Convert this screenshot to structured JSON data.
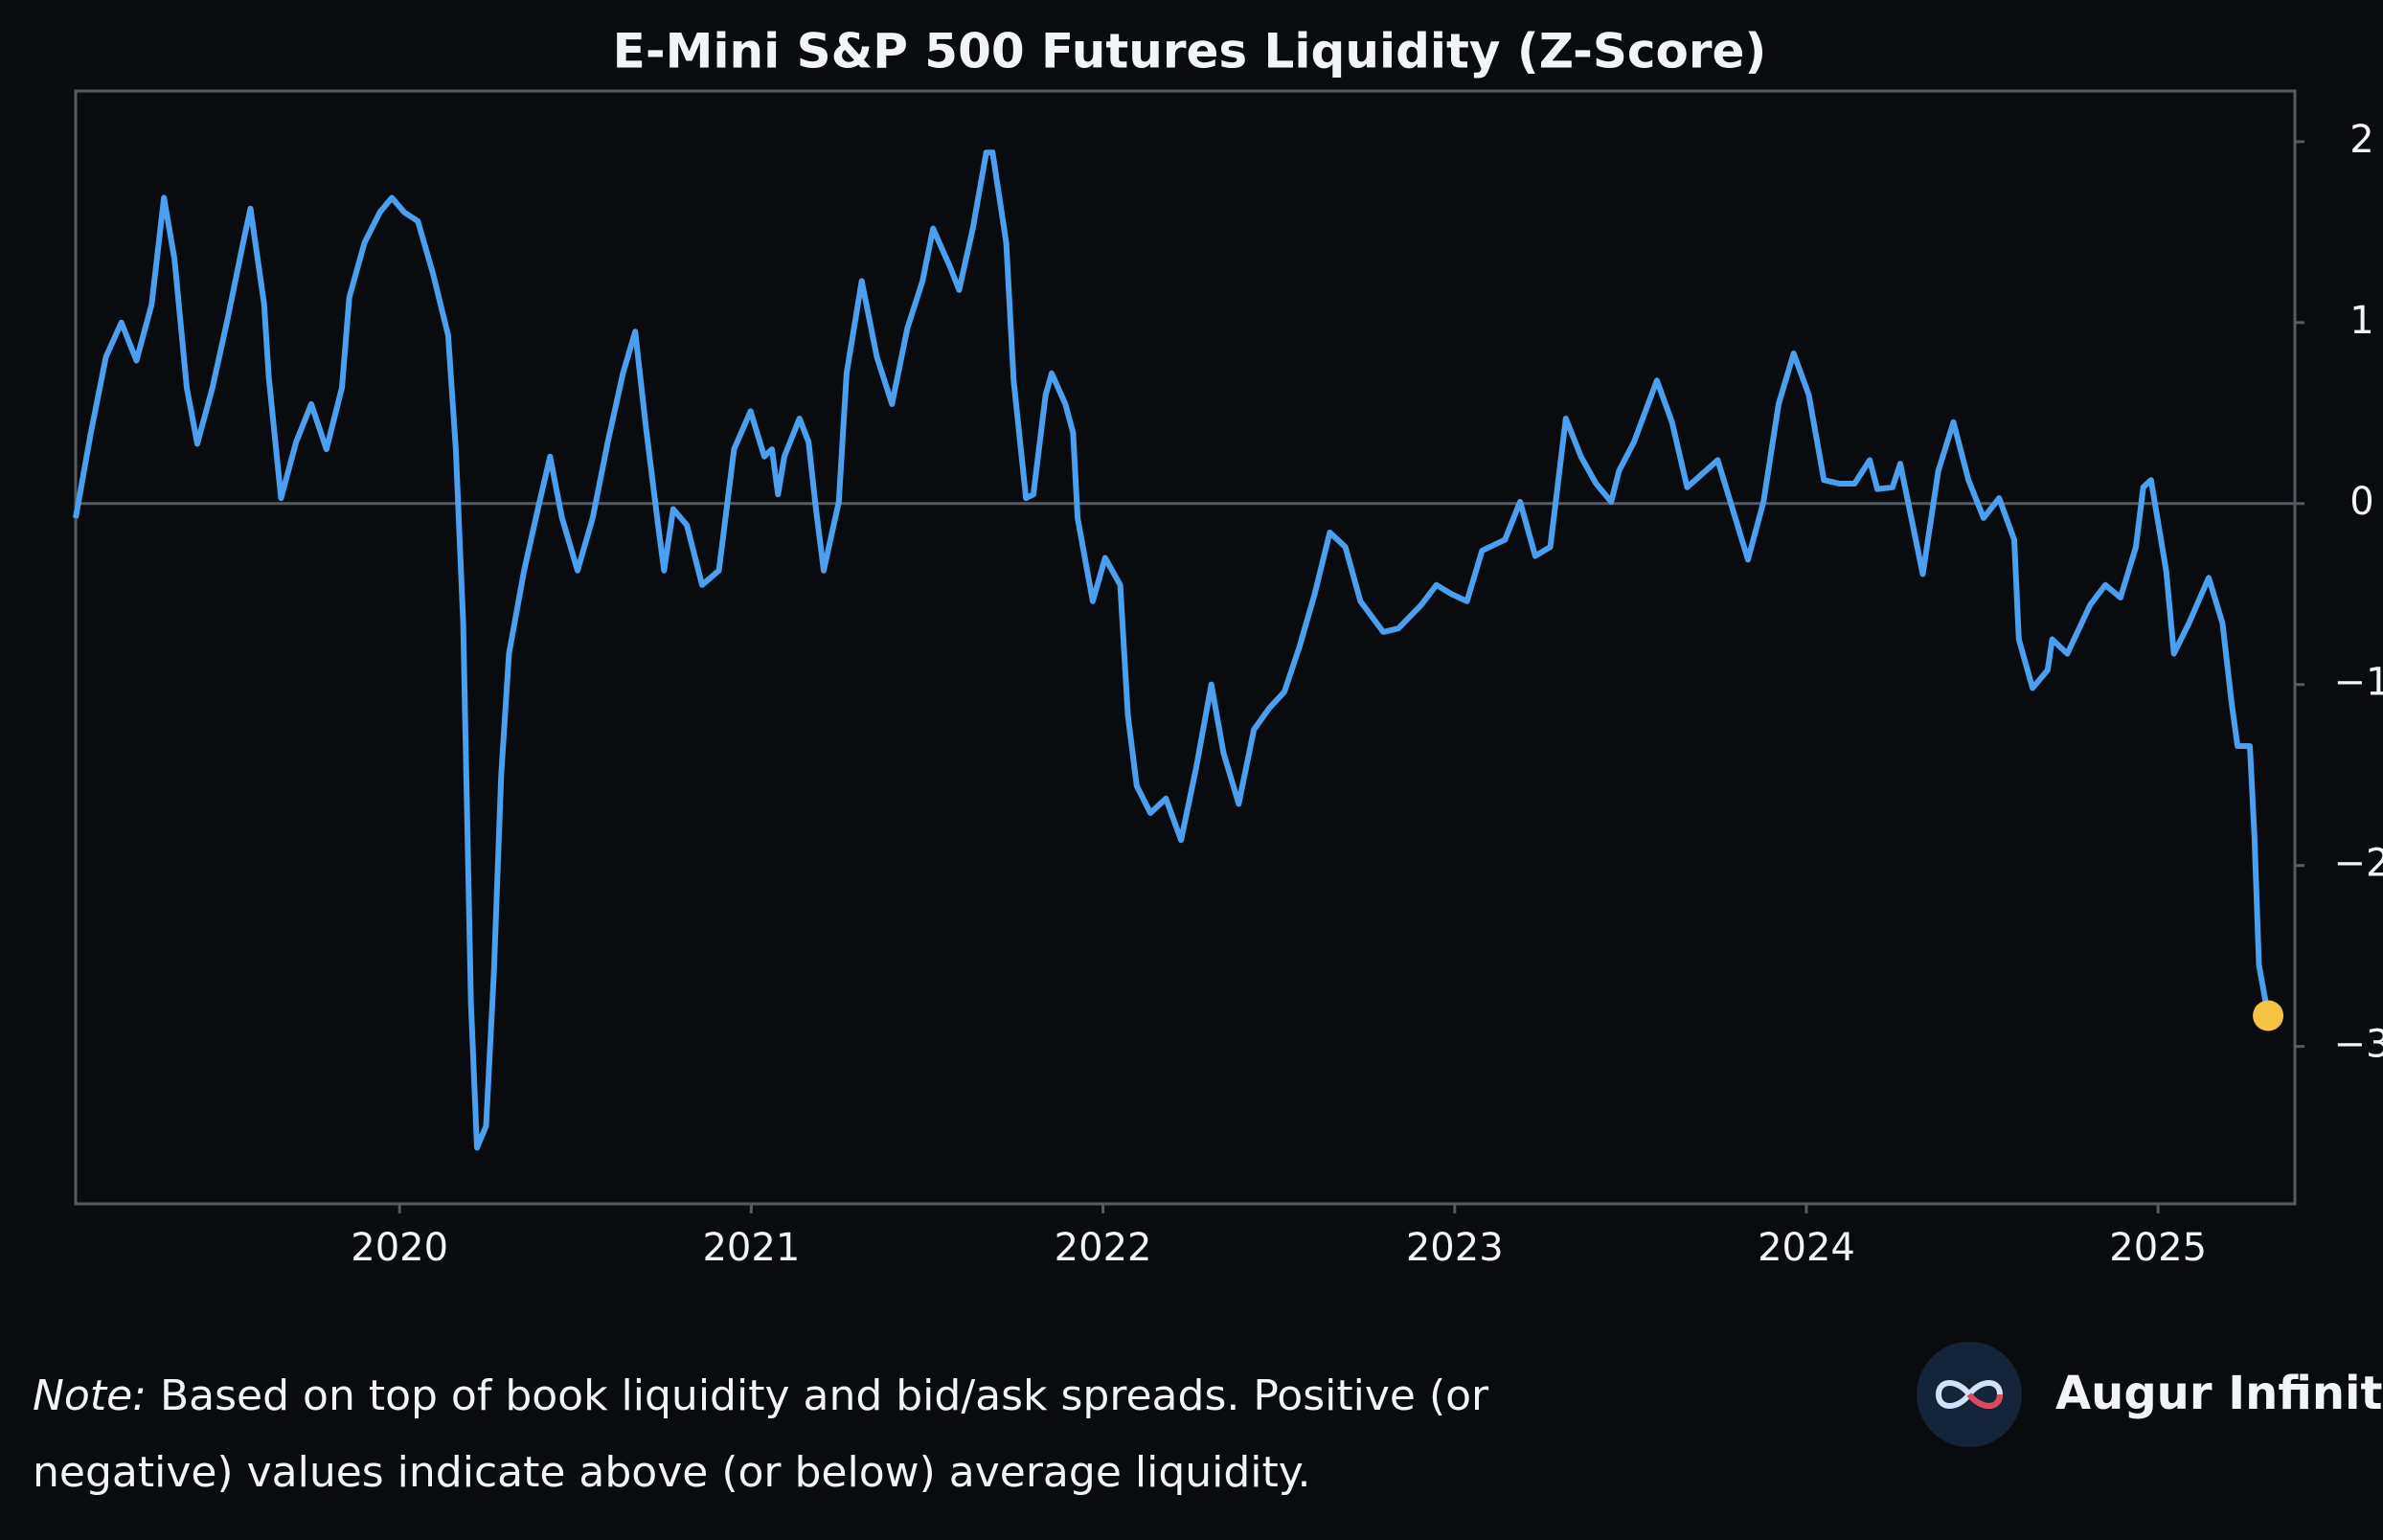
{
  "chart_data": {
    "type": "line",
    "title": "E-Mini S&P 500 Futures Liquidity (Z-Score)",
    "color": "#4a9ff0",
    "last_point_color": "#f5c242",
    "reference_line": 0,
    "xlim": [
      2019.079,
      2025.389
    ],
    "xticks": [
      2020,
      2021,
      2022,
      2023,
      2024,
      2025
    ],
    "ylim": [
      -3.87,
      2.28
    ],
    "yticks": [
      {
        "value": -3,
        "label": "−3"
      },
      {
        "value": -2,
        "label": "−2"
      },
      {
        "value": -1,
        "label": "−1"
      },
      0,
      1,
      2
    ],
    "x": [
      2019.079,
      2019.122,
      2019.165,
      2019.209,
      2019.252,
      2019.295,
      2019.33,
      2019.36,
      2019.395,
      2019.425,
      2019.468,
      2019.511,
      2019.555,
      2019.576,
      2019.615,
      2019.628,
      2019.663,
      2019.706,
      2019.749,
      2019.792,
      2019.836,
      2019.857,
      2019.9,
      2019.944,
      2019.978,
      2020.013,
      2020.052,
      2020.095,
      2020.138,
      2020.16,
      2020.181,
      2020.203,
      2020.22,
      2020.246,
      2020.268,
      2020.289,
      2020.311,
      2020.354,
      2020.398,
      2020.428,
      2020.462,
      2020.506,
      2020.549,
      2020.592,
      2020.635,
      2020.67,
      2020.7,
      2020.735,
      2020.752,
      2020.778,
      2020.817,
      2020.86,
      2020.908,
      2020.951,
      2020.998,
      2021.037,
      2021.059,
      2021.076,
      2021.094,
      2021.137,
      2021.163,
      2021.184,
      2021.206,
      2021.249,
      2021.271,
      2021.314,
      2021.357,
      2021.4,
      2021.444,
      2021.487,
      2021.517,
      2021.535,
      2021.565,
      2021.591,
      2021.63,
      2021.668,
      2021.686,
      2021.725,
      2021.746,
      2021.781,
      2021.802,
      2021.837,
      2021.854,
      2021.893,
      2021.915,
      2021.928,
      2021.971,
      2022.006,
      2022.049,
      2022.071,
      2022.096,
      2022.135,
      2022.179,
      2022.222,
      2022.265,
      2022.308,
      2022.343,
      2022.386,
      2022.429,
      2022.473,
      2022.516,
      2022.559,
      2022.602,
      2022.645,
      2022.689,
      2022.732,
      2022.797,
      2022.84,
      2022.905,
      2022.948,
      2022.991,
      2023.035,
      2023.078,
      2023.143,
      2023.186,
      2023.229,
      2023.272,
      2023.316,
      2023.359,
      2023.402,
      2023.445,
      2023.467,
      2023.51,
      2023.575,
      2023.618,
      2023.661,
      2023.748,
      2023.834,
      2023.878,
      2023.921,
      2023.964,
      2024.007,
      2024.05,
      2024.094,
      2024.137,
      2024.18,
      2024.202,
      2024.245,
      2024.267,
      2024.331,
      2024.375,
      2024.418,
      2024.461,
      2024.504,
      2024.548,
      2024.591,
      2024.604,
      2024.643,
      2024.686,
      2024.699,
      2024.742,
      2024.807,
      2024.85,
      2024.893,
      2024.937,
      2024.958,
      2024.98,
      2025.023,
      2025.045,
      2025.088,
      2025.144,
      2025.183,
      2025.209,
      2025.226,
      2025.261,
      2025.274,
      2025.287,
      2025.313
    ],
    "values": [
      -0.08,
      0.39,
      0.81,
      1.0,
      0.79,
      1.1,
      1.69,
      1.35,
      0.64,
      0.33,
      0.64,
      1.02,
      1.44,
      1.63,
      1.1,
      0.7,
      0.03,
      0.34,
      0.55,
      0.3,
      0.64,
      1.14,
      1.44,
      1.61,
      1.69,
      1.61,
      1.56,
      1.27,
      0.93,
      0.3,
      -0.66,
      -2.76,
      -3.56,
      -3.44,
      -2.6,
      -1.5,
      -0.83,
      -0.37,
      0.01,
      0.26,
      -0.08,
      -0.37,
      -0.08,
      0.34,
      0.72,
      0.95,
      0.43,
      -0.12,
      -0.37,
      -0.03,
      -0.12,
      -0.45,
      -0.37,
      0.3,
      0.51,
      0.26,
      0.3,
      0.05,
      0.26,
      0.47,
      0.34,
      -0.03,
      -0.37,
      0.01,
      0.72,
      1.23,
      0.81,
      0.55,
      0.97,
      1.23,
      1.52,
      1.44,
      1.31,
      1.18,
      1.52,
      1.94,
      1.94,
      1.44,
      0.68,
      0.03,
      0.05,
      0.6,
      0.72,
      0.55,
      0.39,
      -0.08,
      -0.54,
      -0.3,
      -0.45,
      -1.17,
      -1.56,
      -1.71,
      -1.63,
      -1.86,
      -1.46,
      -1.0,
      -1.38,
      -1.66,
      -1.25,
      -1.13,
      -1.04,
      -0.79,
      -0.5,
      -0.16,
      -0.24,
      -0.54,
      -0.71,
      -0.69,
      -0.56,
      -0.45,
      -0.5,
      -0.54,
      -0.26,
      -0.2,
      0.01,
      -0.29,
      -0.24,
      0.47,
      0.26,
      0.11,
      0.01,
      0.18,
      0.34,
      0.68,
      0.45,
      0.09,
      0.24,
      -0.31,
      0.01,
      0.55,
      0.83,
      0.6,
      0.13,
      0.11,
      0.11,
      0.24,
      0.08,
      0.09,
      0.22,
      -0.39,
      0.18,
      0.45,
      0.13,
      -0.08,
      0.03,
      -0.2,
      -0.75,
      -1.02,
      -0.92,
      -0.75,
      -0.83,
      -0.56,
      -0.45,
      -0.52,
      -0.24,
      0.09,
      0.13,
      -0.37,
      -0.83,
      -0.66,
      -0.41,
      -0.66,
      -1.1,
      -1.34,
      -1.34,
      -1.84,
      -2.55,
      -2.83
    ],
    "note": {
      "label": "Note:",
      "lines": [
        "Based on top of book liquidity and bid/ask spreads. Positive (or",
        "negative) values indicate above (or below) average liquidity."
      ]
    },
    "brand": "Augur Infinity"
  }
}
